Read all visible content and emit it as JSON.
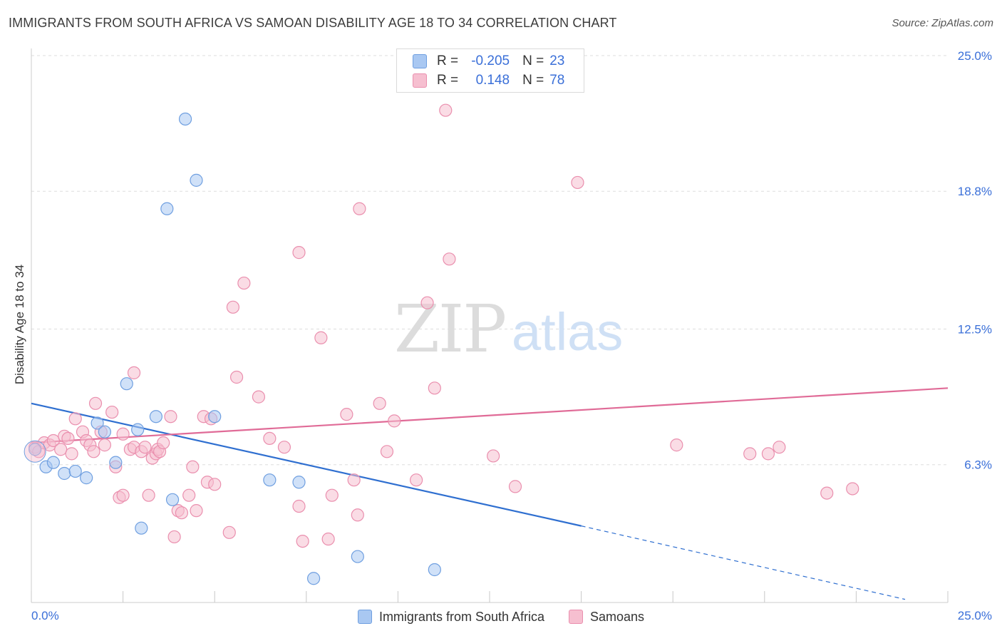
{
  "title": "IMMIGRANTS FROM SOUTH AFRICA VS SAMOAN DISABILITY AGE 18 TO 34 CORRELATION CHART",
  "source": "Source: ZipAtlas.com",
  "watermark": {
    "zip": "ZIP",
    "atlas": "atlas"
  },
  "legend_box": {
    "r_label": "R =",
    "n_label": "N =",
    "rows": [
      {
        "r": "-0.205",
        "n": "23",
        "color": "#a9c8f2",
        "border": "#6f9fe0"
      },
      {
        "r": "0.148",
        "n": "78",
        "color": "#f6bfd0",
        "border": "#ea8fae"
      }
    ]
  },
  "chart_data": {
    "type": "scatter",
    "title": "IMMIGRANTS FROM SOUTH AFRICA VS SAMOAN DISABILITY AGE 18 TO 34 CORRELATION CHART",
    "xlabel": "",
    "ylabel": "Disability Age 18 to 34",
    "xlim": [
      0,
      25
    ],
    "ylim": [
      0,
      25
    ],
    "x_tick_labels": [
      "0.0%",
      "25.0%"
    ],
    "y_ticks": [
      6.3,
      12.5,
      18.8,
      25.0
    ],
    "y_tick_labels": [
      "6.3%",
      "12.5%",
      "18.8%",
      "25.0%"
    ],
    "grid": true,
    "legend_position": "bottom",
    "series": [
      {
        "name": "Immigrants from South Africa",
        "color": "#6f9fe0",
        "fill": "#a9c8f2",
        "trend": {
          "x0": 0,
          "y0": 9.1,
          "x1": 15.0,
          "y1": 3.5,
          "dashed_to_x": 25,
          "dashed_to_y": -0.3
        },
        "points": [
          [
            0.1,
            7.0
          ],
          [
            0.4,
            6.2
          ],
          [
            0.6,
            6.4
          ],
          [
            0.9,
            5.9
          ],
          [
            1.2,
            6.0
          ],
          [
            1.5,
            5.7
          ],
          [
            1.8,
            8.2
          ],
          [
            2.0,
            7.8
          ],
          [
            2.3,
            6.4
          ],
          [
            2.6,
            10.0
          ],
          [
            2.9,
            7.9
          ],
          [
            3.0,
            3.4
          ],
          [
            3.4,
            8.5
          ],
          [
            3.7,
            18.0
          ],
          [
            3.85,
            4.7
          ],
          [
            4.2,
            22.1
          ],
          [
            4.5,
            19.3
          ],
          [
            5.0,
            8.5
          ],
          [
            6.5,
            5.6
          ],
          [
            7.3,
            5.5
          ],
          [
            7.7,
            1.1
          ],
          [
            8.9,
            2.1
          ],
          [
            11.0,
            1.5
          ]
        ]
      },
      {
        "name": "Samoans",
        "color": "#ea8fae",
        "fill": "#f6bfd0",
        "trend": {
          "x0": 0,
          "y0": 7.3,
          "x1": 25,
          "y1": 9.8
        },
        "points": [
          [
            0.1,
            7.1
          ],
          [
            0.2,
            6.9
          ],
          [
            0.35,
            7.3
          ],
          [
            0.5,
            7.2
          ],
          [
            0.6,
            7.4
          ],
          [
            0.8,
            7.0
          ],
          [
            0.9,
            7.6
          ],
          [
            1.0,
            7.5
          ],
          [
            1.1,
            6.8
          ],
          [
            1.2,
            8.4
          ],
          [
            1.4,
            7.8
          ],
          [
            1.5,
            7.4
          ],
          [
            1.6,
            7.2
          ],
          [
            1.7,
            6.9
          ],
          [
            1.75,
            9.1
          ],
          [
            1.9,
            7.8
          ],
          [
            2.0,
            7.2
          ],
          [
            2.2,
            8.7
          ],
          [
            2.3,
            6.2
          ],
          [
            2.4,
            4.8
          ],
          [
            2.5,
            4.9
          ],
          [
            2.5,
            7.7
          ],
          [
            2.7,
            7.0
          ],
          [
            2.8,
            7.1
          ],
          [
            2.8,
            10.5
          ],
          [
            3.0,
            6.9
          ],
          [
            3.1,
            7.1
          ],
          [
            3.2,
            4.9
          ],
          [
            3.3,
            6.6
          ],
          [
            3.4,
            6.8
          ],
          [
            3.45,
            7.0
          ],
          [
            3.5,
            6.9
          ],
          [
            3.6,
            7.3
          ],
          [
            3.8,
            8.5
          ],
          [
            3.9,
            3.0
          ],
          [
            4.0,
            4.2
          ],
          [
            4.1,
            4.1
          ],
          [
            4.3,
            4.9
          ],
          [
            4.4,
            6.2
          ],
          [
            4.5,
            4.2
          ],
          [
            4.7,
            8.5
          ],
          [
            4.8,
            5.5
          ],
          [
            4.9,
            8.4
          ],
          [
            5.0,
            5.4
          ],
          [
            5.4,
            3.2
          ],
          [
            5.5,
            13.5
          ],
          [
            5.6,
            10.3
          ],
          [
            5.8,
            14.6
          ],
          [
            6.2,
            9.4
          ],
          [
            6.5,
            7.5
          ],
          [
            6.9,
            7.1
          ],
          [
            7.3,
            4.4
          ],
          [
            7.3,
            16.0
          ],
          [
            7.4,
            2.8
          ],
          [
            7.9,
            12.1
          ],
          [
            8.1,
            2.9
          ],
          [
            8.2,
            4.9
          ],
          [
            8.6,
            8.6
          ],
          [
            8.8,
            5.6
          ],
          [
            8.9,
            4.0
          ],
          [
            8.95,
            18.0
          ],
          [
            9.5,
            9.1
          ],
          [
            9.7,
            6.9
          ],
          [
            9.9,
            8.3
          ],
          [
            10.5,
            5.6
          ],
          [
            10.8,
            13.7
          ],
          [
            11.0,
            9.8
          ],
          [
            11.3,
            22.5
          ],
          [
            11.4,
            15.7
          ],
          [
            12.6,
            6.7
          ],
          [
            13.2,
            5.3
          ],
          [
            14.9,
            19.2
          ],
          [
            17.6,
            7.2
          ],
          [
            19.6,
            6.8
          ],
          [
            20.1,
            6.8
          ],
          [
            20.4,
            7.1
          ],
          [
            21.7,
            5.0
          ],
          [
            22.4,
            5.2
          ]
        ]
      }
    ]
  }
}
